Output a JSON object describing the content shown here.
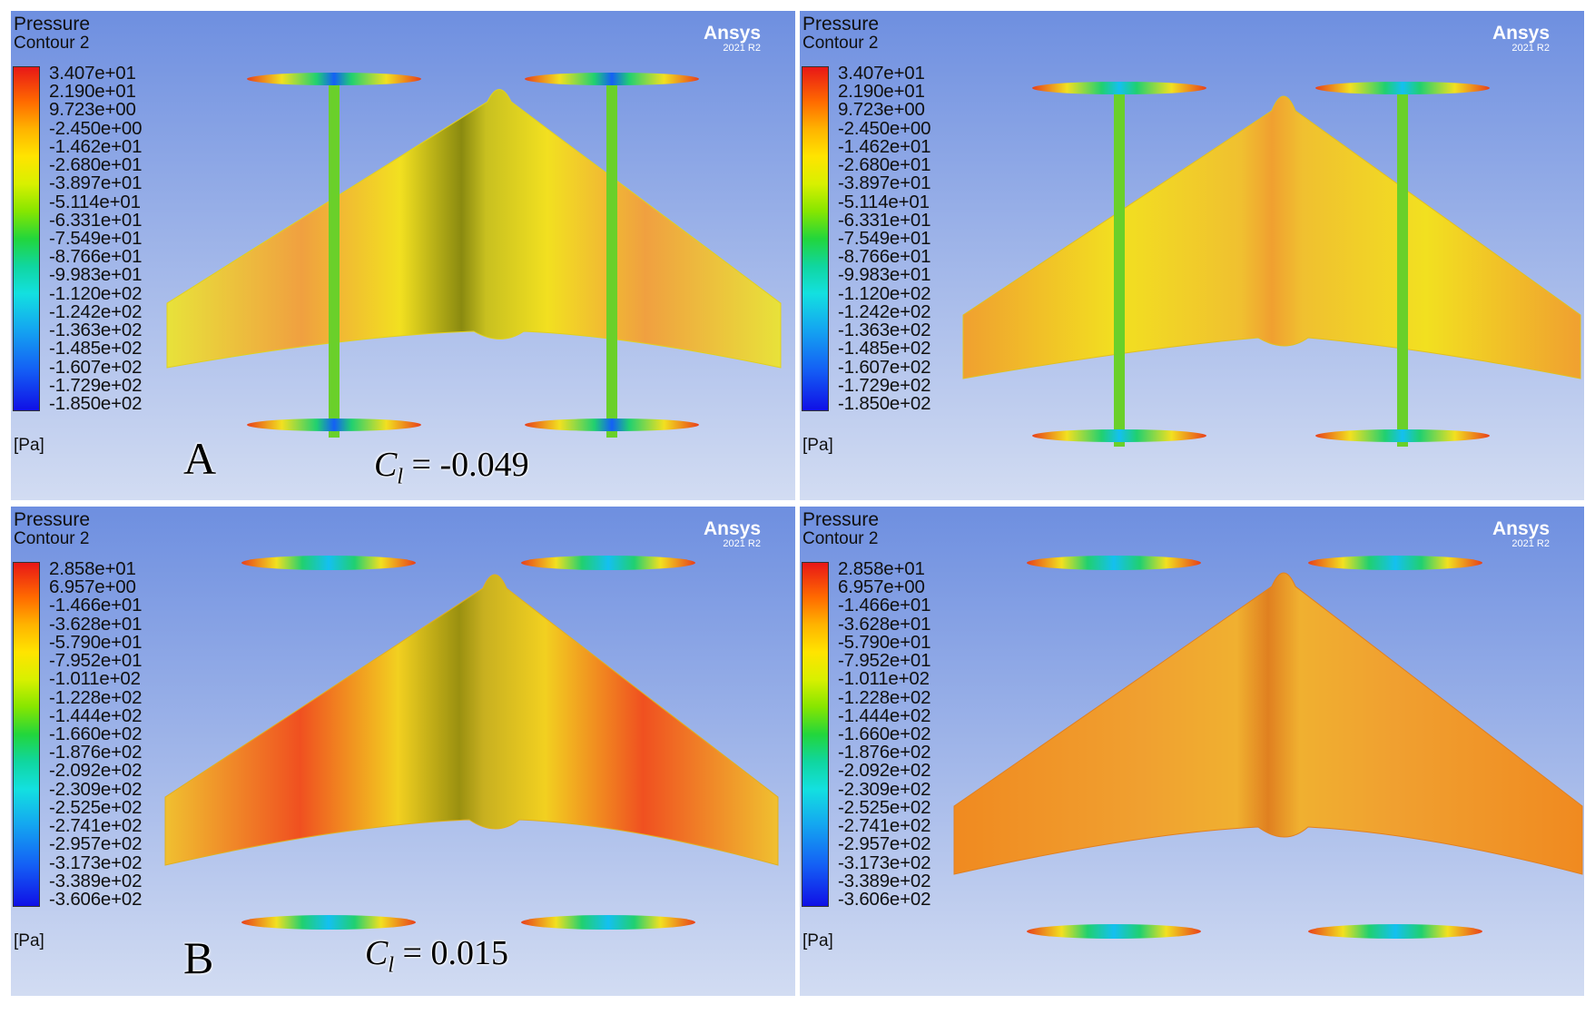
{
  "panels": [
    {
      "title": "Pressure",
      "subtitle": "Contour 2",
      "brand": "Ansys",
      "version": "2021 R2",
      "unit": "[Pa]",
      "ticks": [
        "3.407e+01",
        "2.190e+01",
        "9.723e+00",
        "-2.450e+00",
        "-1.462e+01",
        "-2.680e+01",
        "-3.897e+01",
        "-5.114e+01",
        "-6.331e+01",
        "-7.549e+01",
        "-8.766e+01",
        "-9.983e+01",
        "-1.120e+02",
        "-1.242e+02",
        "-1.363e+02",
        "-1.485e+02",
        "-1.607e+02",
        "-1.729e+02",
        "-1.850e+02"
      ],
      "label": "A",
      "cl_symbol": "C",
      "cl_sub": "l",
      "cl_value": "= -0.049"
    },
    {
      "title": "Pressure",
      "subtitle": "Contour 2",
      "brand": "Ansys",
      "version": "2021 R2",
      "unit": "[Pa]",
      "ticks": [
        "3.407e+01",
        "2.190e+01",
        "9.723e+00",
        "-2.450e+00",
        "-1.462e+01",
        "-2.680e+01",
        "-3.897e+01",
        "-5.114e+01",
        "-6.331e+01",
        "-7.549e+01",
        "-8.766e+01",
        "-9.983e+01",
        "-1.120e+02",
        "-1.242e+02",
        "-1.363e+02",
        "-1.485e+02",
        "-1.607e+02",
        "-1.729e+02",
        "-1.850e+02"
      ]
    },
    {
      "title": "Pressure",
      "subtitle": "Contour 2",
      "brand": "Ansys",
      "version": "2021 R2",
      "unit": "[Pa]",
      "ticks": [
        "2.858e+01",
        "6.957e+00",
        "-1.466e+01",
        "-3.628e+01",
        "-5.790e+01",
        "-7.952e+01",
        "-1.011e+02",
        "-1.228e+02",
        "-1.444e+02",
        "-1.660e+02",
        "-1.876e+02",
        "-2.092e+02",
        "-2.309e+02",
        "-2.525e+02",
        "-2.741e+02",
        "-2.957e+02",
        "-3.173e+02",
        "-3.389e+02",
        "-3.606e+02"
      ],
      "label": "B",
      "cl_symbol": "C",
      "cl_sub": "l",
      "cl_value": "= 0.015"
    },
    {
      "title": "Pressure",
      "subtitle": "Contour 2",
      "brand": "Ansys",
      "version": "2021 R2",
      "unit": "[Pa]",
      "ticks": [
        "2.858e+01",
        "6.957e+00",
        "-1.466e+01",
        "-3.628e+01",
        "-5.790e+01",
        "-7.952e+01",
        "-1.011e+02",
        "-1.228e+02",
        "-1.444e+02",
        "-1.660e+02",
        "-1.876e+02",
        "-2.092e+02",
        "-2.309e+02",
        "-2.525e+02",
        "-2.741e+02",
        "-2.957e+02",
        "-3.173e+02",
        "-3.389e+02",
        "-3.606e+02"
      ]
    }
  ],
  "colors": {
    "bg_top": "#6e8fe0",
    "bg_bottom": "#d2dcf2",
    "wing_yellow": "#f2e61c",
    "wing_orange": "#f6a020",
    "wing_red": "#e8401a"
  }
}
